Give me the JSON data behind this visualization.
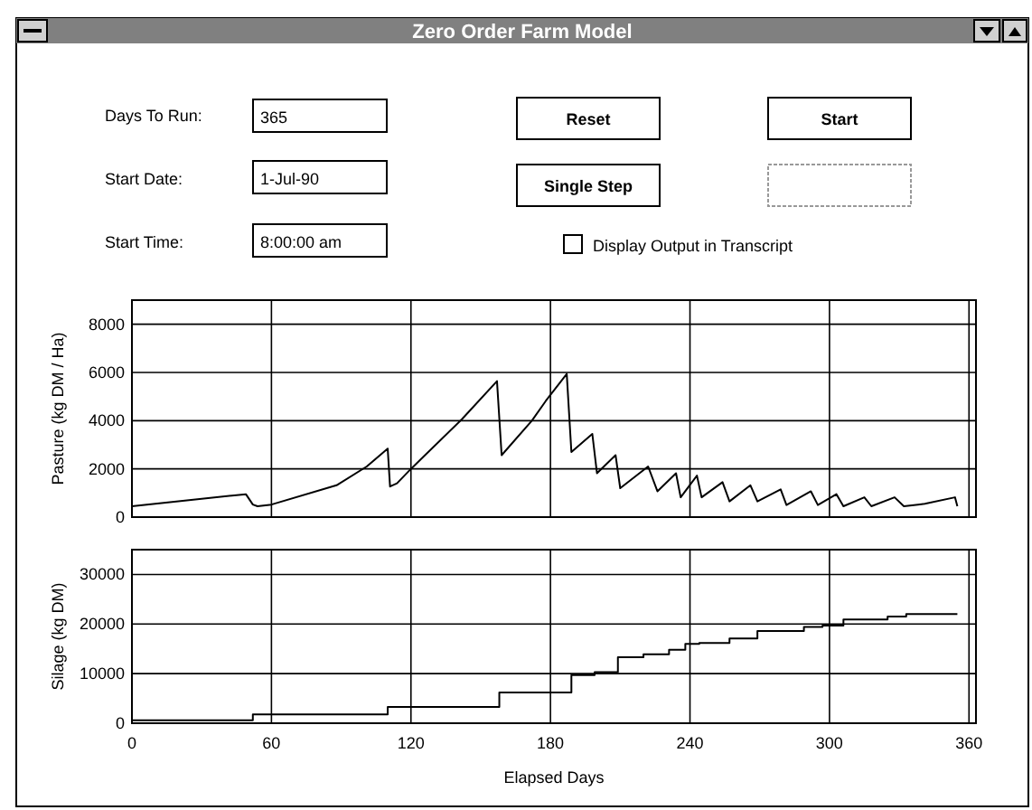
{
  "chart_data": [
    {
      "type": "other",
      "title": "Zero Order Farm Model",
      "annotations": [
        "Days To Run:",
        "365",
        "Start Date:",
        "1-Jul-90",
        "Start Time:",
        "8:00:00 am",
        "Reset",
        "Start",
        "Single Step",
        "Display Output in Transcript"
      ]
    },
    {
      "type": "line",
      "ylabel": "Pasture (kg DM / Ha)",
      "xlim": [
        0,
        363
      ],
      "ylim": [
        0,
        9000
      ],
      "xticks": [
        0,
        60,
        120,
        180,
        240,
        300,
        360
      ],
      "yticks": [
        0,
        2000,
        4000,
        6000,
        8000
      ],
      "grid": true,
      "tick_labels": "y",
      "series": [
        {
          "color": "#000000",
          "x": [
            0,
            49,
            52,
            54,
            60,
            88,
            101,
            110,
            111,
            114,
            120,
            142,
            157,
            159,
            172,
            178,
            187,
            189,
            198,
            200,
            208,
            210,
            222,
            226,
            234,
            236,
            243,
            245,
            254,
            257,
            266,
            269,
            279,
            281.5,
            292,
            295,
            303,
            306,
            315,
            318,
            328,
            332,
            341,
            354,
            355
          ],
          "values": [
            450,
            950,
            520,
            450,
            520,
            1320,
            2100,
            2840,
            1270,
            1400,
            2000,
            4070,
            5640,
            2570,
            4000,
            4820,
            5940,
            2700,
            3450,
            1820,
            2570,
            1200,
            2100,
            1070,
            1820,
            820,
            1720,
            820,
            1450,
            650,
            1320,
            650,
            1150,
            500,
            1070,
            500,
            950,
            450,
            820,
            450,
            820,
            450,
            550,
            820,
            450
          ]
        }
      ]
    },
    {
      "type": "step",
      "xlabel": "Elapsed Days",
      "ylabel": "Silage (kg DM)",
      "xlim": [
        0,
        363
      ],
      "ylim": [
        0,
        35000
      ],
      "xticks": [
        0,
        60,
        120,
        180,
        240,
        300,
        360
      ],
      "yticks": [
        0,
        10000,
        20000,
        30000
      ],
      "grid": true,
      "series": [
        {
          "color": "#000000",
          "x": [
            0,
            52,
            110,
            158,
            189,
            199,
            209,
            220,
            231,
            238,
            244,
            257,
            269,
            289,
            297,
            306,
            325,
            333,
            355
          ],
          "values": [
            600,
            1800,
            3300,
            6200,
            9700,
            10300,
            13300,
            13900,
            14800,
            16000,
            16200,
            17100,
            18600,
            19400,
            19700,
            20900,
            21500,
            22000,
            22000
          ]
        }
      ]
    }
  ]
}
